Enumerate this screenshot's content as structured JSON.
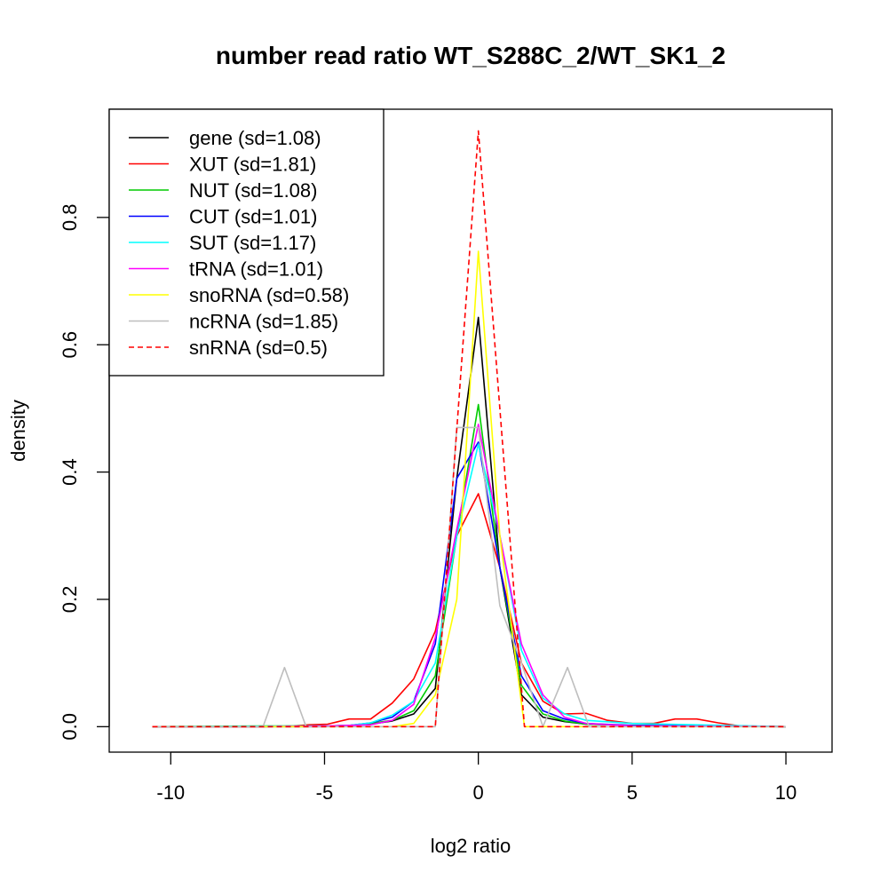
{
  "chart_data": {
    "type": "line",
    "title": "number read ratio WT_S288C_2/WT_SK1_2",
    "xlabel": "log2 ratio",
    "ylabel": "density",
    "xlim": [
      -12,
      11.5
    ],
    "ylim": [
      -0.04,
      0.97
    ],
    "xticks": [
      -10,
      -5,
      0,
      5,
      10
    ],
    "yticks": [
      0.0,
      0.2,
      0.4,
      0.6,
      0.8
    ],
    "xtick_labels": [
      "-10",
      "-5",
      "0",
      "5",
      "10"
    ],
    "ytick_labels": [
      "0.0",
      "0.2",
      "0.4",
      "0.6",
      "0.8"
    ],
    "grid": false,
    "legend_position": "top-left",
    "series": [
      {
        "name": "gene (sd=1.08)",
        "color": "#000000",
        "dash": false,
        "points": [
          [
            -10.6,
            0
          ],
          [
            -7,
            0
          ],
          [
            -5,
            0.001
          ],
          [
            -4.2,
            0.002
          ],
          [
            -3.5,
            0.004
          ],
          [
            -2.8,
            0.009
          ],
          [
            -2.1,
            0.02
          ],
          [
            -1.4,
            0.06
          ],
          [
            -0.7,
            0.39
          ],
          [
            0,
            0.643
          ],
          [
            0.7,
            0.25
          ],
          [
            1.4,
            0.05
          ],
          [
            2.1,
            0.015
          ],
          [
            2.8,
            0.008
          ],
          [
            3.5,
            0.004
          ],
          [
            5,
            0.002
          ],
          [
            7,
            0.001
          ],
          [
            10,
            0
          ]
        ]
      },
      {
        "name": "XUT (sd=1.81)",
        "color": "#ff0000",
        "dash": false,
        "points": [
          [
            -10.6,
            0
          ],
          [
            -7,
            0
          ],
          [
            -6,
            0.001
          ],
          [
            -5.5,
            0.003
          ],
          [
            -4.9,
            0.004
          ],
          [
            -4.2,
            0.012
          ],
          [
            -3.5,
            0.012
          ],
          [
            -2.8,
            0.037
          ],
          [
            -2.1,
            0.075
          ],
          [
            -1.4,
            0.15
          ],
          [
            -0.7,
            0.3
          ],
          [
            0,
            0.366
          ],
          [
            0.7,
            0.25
          ],
          [
            1.4,
            0.1
          ],
          [
            2.1,
            0.04
          ],
          [
            2.8,
            0.02
          ],
          [
            3.5,
            0.021
          ],
          [
            4.2,
            0.01
          ],
          [
            5,
            0.005
          ],
          [
            5.7,
            0.005
          ],
          [
            6.4,
            0.012
          ],
          [
            7.1,
            0.012
          ],
          [
            7.8,
            0.006
          ],
          [
            8.5,
            0.001
          ],
          [
            10,
            0
          ]
        ]
      },
      {
        "name": "NUT (sd=1.08)",
        "color": "#00cc00",
        "dash": false,
        "points": [
          [
            -10.6,
            0
          ],
          [
            -7,
            0.001
          ],
          [
            -5,
            0.001
          ],
          [
            -4.2,
            0.002
          ],
          [
            -3.5,
            0.005
          ],
          [
            -2.8,
            0.01
          ],
          [
            -2.1,
            0.025
          ],
          [
            -1.4,
            0.08
          ],
          [
            -0.7,
            0.3
          ],
          [
            0,
            0.506
          ],
          [
            0.7,
            0.25
          ],
          [
            1.4,
            0.065
          ],
          [
            2.1,
            0.02
          ],
          [
            2.8,
            0.009
          ],
          [
            3.5,
            0.004
          ],
          [
            5,
            0.002
          ],
          [
            10,
            0
          ]
        ]
      },
      {
        "name": "CUT (sd=1.01)",
        "color": "#0000ff",
        "dash": false,
        "points": [
          [
            -10.6,
            0
          ],
          [
            -5,
            0
          ],
          [
            -4.2,
            0.002
          ],
          [
            -3.5,
            0.006
          ],
          [
            -2.8,
            0.015
          ],
          [
            -2.1,
            0.04
          ],
          [
            -1.4,
            0.13
          ],
          [
            -0.7,
            0.39
          ],
          [
            0,
            0.447
          ],
          [
            0.7,
            0.25
          ],
          [
            1.4,
            0.08
          ],
          [
            2.1,
            0.025
          ],
          [
            2.8,
            0.012
          ],
          [
            3.5,
            0.005
          ],
          [
            5,
            0.002
          ],
          [
            10,
            0
          ]
        ]
      },
      {
        "name": "SUT (sd=1.17)",
        "color": "#00ffff",
        "dash": false,
        "points": [
          [
            -10.6,
            0
          ],
          [
            -5,
            0.001
          ],
          [
            -4.2,
            0.002
          ],
          [
            -3.5,
            0.006
          ],
          [
            -2.8,
            0.018
          ],
          [
            -2.1,
            0.04
          ],
          [
            -1.4,
            0.1
          ],
          [
            -0.7,
            0.3
          ],
          [
            0,
            0.444
          ],
          [
            0.7,
            0.3
          ],
          [
            1.4,
            0.12
          ],
          [
            2.1,
            0.045
          ],
          [
            2.8,
            0.02
          ],
          [
            3.5,
            0.01
          ],
          [
            5,
            0.005
          ],
          [
            7,
            0.003
          ],
          [
            10,
            0
          ]
        ]
      },
      {
        "name": "tRNA (sd=1.01)",
        "color": "#ff00ff",
        "dash": false,
        "points": [
          [
            -10.6,
            0
          ],
          [
            -7,
            0
          ],
          [
            -5,
            0.001
          ],
          [
            -3.5,
            0.003
          ],
          [
            -2.8,
            0.01
          ],
          [
            -2.1,
            0.035
          ],
          [
            -1.4,
            0.14
          ],
          [
            -0.7,
            0.31
          ],
          [
            0,
            0.475
          ],
          [
            0.7,
            0.3
          ],
          [
            1.4,
            0.13
          ],
          [
            2.1,
            0.05
          ],
          [
            2.8,
            0.015
          ],
          [
            3.5,
            0.005
          ],
          [
            5,
            0.001
          ],
          [
            10,
            0
          ]
        ]
      },
      {
        "name": "snoRNA (sd=0.58)",
        "color": "#ffff00",
        "dash": false,
        "points": [
          [
            -10.6,
            0
          ],
          [
            -2.8,
            0
          ],
          [
            -2.1,
            0.005
          ],
          [
            -1.4,
            0.05
          ],
          [
            -0.7,
            0.2
          ],
          [
            0,
            0.747
          ],
          [
            0.7,
            0.3
          ],
          [
            1.5,
            0
          ],
          [
            10,
            0
          ]
        ]
      },
      {
        "name": "ncRNA (sd=1.85)",
        "color": "#bebebe",
        "dash": false,
        "points": [
          [
            -10.6,
            0
          ],
          [
            -7,
            0
          ],
          [
            -6.3,
            0.093
          ],
          [
            -5.6,
            0
          ],
          [
            -1.4,
            0
          ],
          [
            -0.7,
            0.47
          ],
          [
            0,
            0.47
          ],
          [
            0.7,
            0.19
          ],
          [
            1.4,
            0.1
          ],
          [
            2.1,
            0
          ],
          [
            2.9,
            0.093
          ],
          [
            3.6,
            0
          ],
          [
            10,
            0
          ]
        ]
      },
      {
        "name": "snRNA (sd=0.5)",
        "color": "#ff0000",
        "dash": true,
        "points": [
          [
            -10.6,
            0
          ],
          [
            -1.4,
            0
          ],
          [
            0,
            0.936
          ],
          [
            1.5,
            0
          ],
          [
            10,
            0
          ]
        ]
      }
    ]
  }
}
